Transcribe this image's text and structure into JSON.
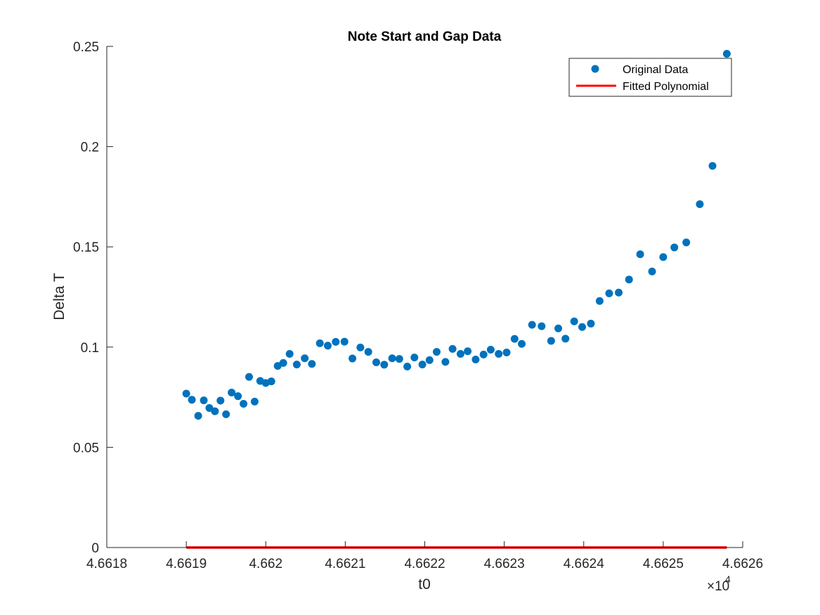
{
  "chart_data": {
    "type": "scatter",
    "title": "Note Start and Gap Data",
    "xlabel": "t0",
    "ylabel": "Delta T",
    "xlim": [
      4.6618,
      4.6626
    ],
    "ylim": [
      0,
      0.25
    ],
    "x_scale_exponent_label": "×10",
    "x_scale_exponent_power": "4",
    "x_ticks": [
      4.6618,
      4.6619,
      4.662,
      4.6621,
      4.6622,
      4.6623,
      4.6624,
      4.6625,
      4.6626
    ],
    "x_tick_labels": [
      "4.6618",
      "4.6619",
      "4.662",
      "4.6621",
      "4.6622",
      "4.6623",
      "4.6624",
      "4.6625",
      "4.6626"
    ],
    "y_ticks": [
      0,
      0.05,
      0.1,
      0.15,
      0.2,
      0.25
    ],
    "y_tick_labels": [
      "0",
      "0.05",
      "0.1",
      "0.15",
      "0.2",
      "0.25"
    ],
    "grid": false,
    "legend_position": "top-right",
    "colors": {
      "original": "#0072BD",
      "fitted": "#FF0000",
      "axes": "#262626"
    },
    "series": [
      {
        "name": "Original Data",
        "style": "markers",
        "x": [
          4.6619,
          4.661907,
          4.661915,
          4.661922,
          4.661929,
          4.661936,
          4.661943,
          4.66195,
          4.661957,
          4.661965,
          4.661972,
          4.661979,
          4.661986,
          4.661993,
          4.662,
          4.662007,
          4.662015,
          4.662022,
          4.66203,
          4.662039,
          4.662049,
          4.662058,
          4.662068,
          4.662078,
          4.662088,
          4.662099,
          4.662109,
          4.662119,
          4.662129,
          4.662139,
          4.662149,
          4.662159,
          4.662168,
          4.662178,
          4.662187,
          4.662197,
          4.662206,
          4.662215,
          4.662226,
          4.662235,
          4.662245,
          4.662254,
          4.662264,
          4.662274,
          4.662283,
          4.662293,
          4.662303,
          4.662313,
          4.662322,
          4.662335,
          4.662347,
          4.662359,
          4.662368,
          4.662377,
          4.662388,
          4.662398,
          4.662409,
          4.66242,
          4.662432,
          4.662444,
          4.662457,
          4.662471,
          4.662486,
          4.6625,
          4.662514,
          4.662529,
          4.662546,
          4.662562,
          4.66258
        ],
        "y": [
          0.0768,
          0.0737,
          0.0657,
          0.0734,
          0.0696,
          0.068,
          0.0733,
          0.0665,
          0.0773,
          0.0755,
          0.0717,
          0.0851,
          0.0728,
          0.0831,
          0.0821,
          0.0829,
          0.0906,
          0.0921,
          0.0966,
          0.0913,
          0.0944,
          0.0916,
          0.1019,
          0.1007,
          0.1026,
          0.1027,
          0.0943,
          0.0998,
          0.0976,
          0.0924,
          0.0912,
          0.0944,
          0.0941,
          0.0903,
          0.0948,
          0.0913,
          0.0935,
          0.0976,
          0.0926,
          0.0991,
          0.0966,
          0.0979,
          0.0938,
          0.0963,
          0.0987,
          0.0966,
          0.0973,
          0.1041,
          0.1016,
          0.1111,
          0.1104,
          0.1031,
          0.1093,
          0.1042,
          0.1128,
          0.11,
          0.1117,
          0.123,
          0.1268,
          0.1272,
          0.1337,
          0.1463,
          0.1377,
          0.1449,
          0.1497,
          0.1522,
          0.1713,
          0.1904,
          0.2463
        ]
      },
      {
        "name": "Fitted Polynomial",
        "style": "line",
        "x": [
          4.6619,
          4.66258
        ],
        "y": [
          0,
          0
        ]
      }
    ]
  }
}
